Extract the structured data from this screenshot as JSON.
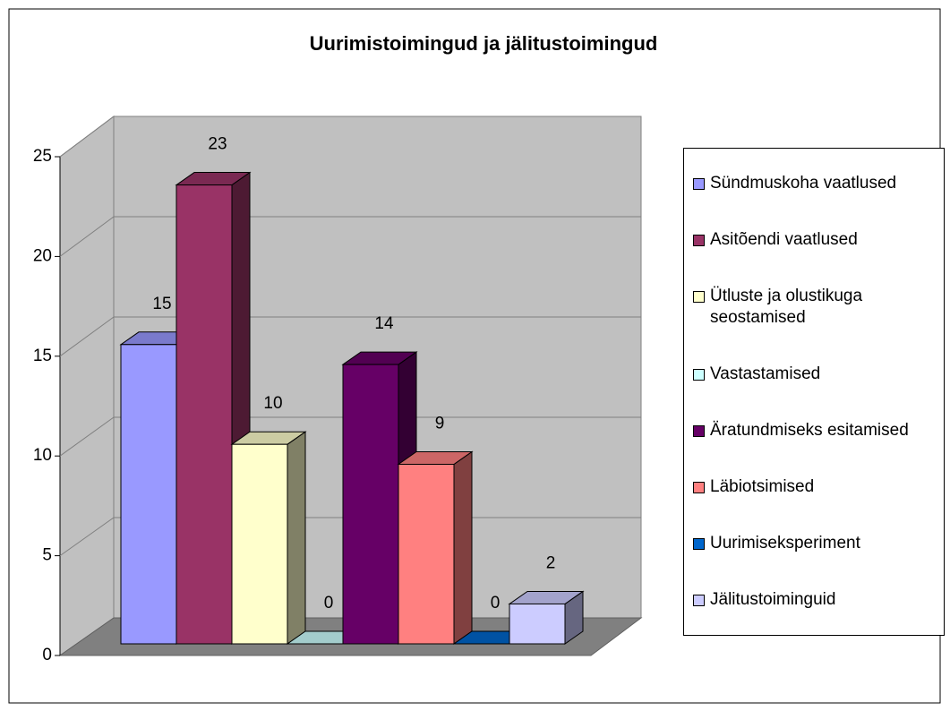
{
  "chart_data": {
    "type": "bar",
    "title": "Uurimistoimingud ja jälitustoimingud",
    "series": [
      {
        "name": "Sündmuskoha vaatlused",
        "color": "#9999ff",
        "values": [
          15
        ]
      },
      {
        "name": "Asitõendi vaatlused",
        "color": "#993366",
        "values": [
          23
        ]
      },
      {
        "name": "Ütluste ja olustikuga seostamised",
        "color": "#ffffcc",
        "values": [
          10
        ]
      },
      {
        "name": "Vastastamised",
        "color": "#ccffff",
        "values": [
          0
        ]
      },
      {
        "name": "Äratundmiseks esitamised",
        "color": "#660066",
        "values": [
          14
        ]
      },
      {
        "name": "Läbiotsimised",
        "color": "#ff8080",
        "values": [
          9
        ]
      },
      {
        "name": "Uurimiseksperiment",
        "color": "#0066cc",
        "values": [
          0
        ]
      },
      {
        "name": "Jälitustoiminguid",
        "color": "#ccccff",
        "values": [
          2
        ]
      }
    ],
    "ylim": [
      0,
      25
    ],
    "yticks": [
      0,
      5,
      10,
      15,
      20,
      25
    ],
    "grid": true,
    "legend": "right"
  }
}
